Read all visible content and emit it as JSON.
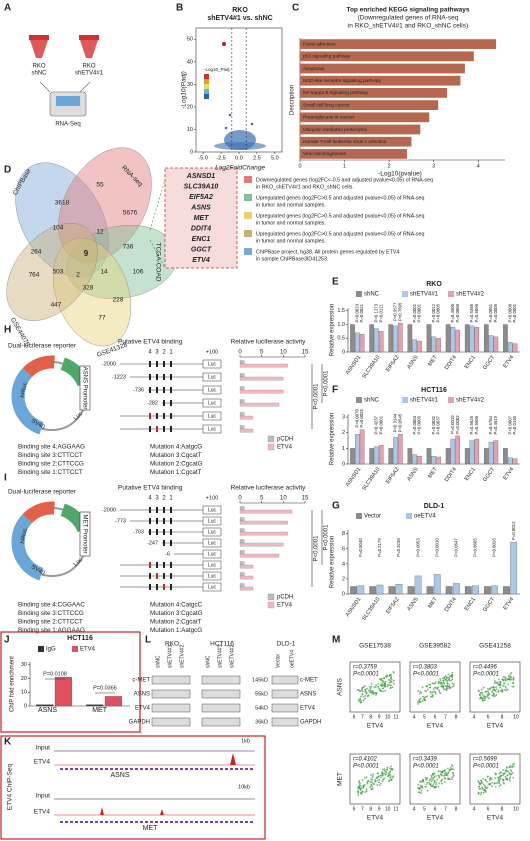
{
  "panel_labels": [
    "A",
    "B",
    "C",
    "D",
    "E",
    "F",
    "G",
    "H",
    "I",
    "J",
    "K",
    "L",
    "M"
  ],
  "a": {
    "tube1": [
      "RKO",
      "shNC"
    ],
    "tube2": [
      "RKO",
      "shETV4#1"
    ],
    "method": "RNA-Seq"
  },
  "b": {
    "title": [
      "RKO",
      "shETV4#1 vs. shNC"
    ],
    "ylabel": "-Log10(Padj)",
    "xlabel": "Log2FoldChange",
    "legend_title": "-Log10_Padj",
    "ylim": [
      0,
      55
    ],
    "yticks": [
      0,
      10,
      20,
      30,
      40,
      50
    ],
    "xlim": [
      -6,
      6
    ],
    "xticks": [
      {
        "value": -5,
        "label": "-5.0"
      },
      {
        "value": -2.5,
        "label": "-2.5"
      },
      {
        "value": 0,
        "label": "0.0"
      },
      {
        "value": 2.5,
        "label": "2.5"
      },
      {
        "value": 5,
        "label": "5.0"
      }
    ]
  },
  "c": {
    "type": "bar",
    "title": [
      "Top enriched KEGG signaling pathways",
      "(Downregulated genes of RNA-seq",
      "in RKO_shETV4#1 and RKO_shNC cells)"
    ],
    "ylabel": "Description",
    "xlabel": "-Log10(pvalue)",
    "color": "#b5684f",
    "categories": [
      "Focal adhesion",
      "p53 signaling pathway",
      "Apoptosis",
      "NOD-like receptor signaling pathway",
      "NF-kappa B signaling pathway",
      "Small cell lung cancer",
      "Proteoglycans in cancer",
      "Ubiquitin mediated proteolysis",
      "Human T-cell leukemia virus 1 infection",
      "Viral carcinogenesis"
    ],
    "values": [
      4.4,
      3.9,
      3.7,
      3.6,
      3.3,
      3.1,
      2.9,
      2.7,
      2.5,
      2.4
    ],
    "xlim": [
      0,
      4.6
    ],
    "xticks": [
      0,
      1,
      2,
      3,
      4
    ]
  },
  "d": {
    "sets": [
      "ChIPBase",
      "RNA-seq",
      "TCGA-COAD",
      "GSE41328",
      "GSE44076"
    ],
    "counts": [
      55,
      3618,
      5676,
      104,
      9,
      736,
      12,
      264,
      503,
      14,
      2,
      106,
      764,
      328,
      447,
      77,
      228
    ],
    "genes": [
      "ASNSD1",
      "SLC39A10",
      "EIF5A2",
      "ASNS",
      "MET",
      "DDIT4",
      "ENC1",
      "GGCT",
      "ETV4"
    ],
    "legend": [
      {
        "text": [
          "Downregulated genes (log2FC<-0.5 and adjusted pvalue<0.05) of RNA-seq",
          "in RKO_shETV4#1 and RKO_shNC cells."
        ],
        "color": "#e07a7a"
      },
      {
        "text": [
          "Upregulated genes (log2FC>0.5 and adjusted pvalue<0.05) of RNA-seq",
          "in tumor and normal samples."
        ],
        "color": "#7fbf9a"
      },
      {
        "text": [
          "Upregulated genes (log2FC>0.5 and adjusted pvalue<0.05) of RNA-seq",
          "in tumor and normal samples."
        ],
        "color": "#e6d27a"
      },
      {
        "text": [
          "Upregulated genes (log2FC>0.5 and adjusted pvalue<0.05) of RNA-seq",
          "in tumor and normal samples."
        ],
        "color": "#c9b07a"
      },
      {
        "text": [
          "ChIPBase project, hg38, All protein genes regulated by ETV4",
          "in sample ChIPBase3ID41253."
        ],
        "color": "#7aa7d6"
      }
    ]
  },
  "e": {
    "type": "bar",
    "title": "RKO",
    "ylabel": "Relative expression",
    "categories": [
      "ASNSD1",
      "SLC39A10",
      "EIF5A2",
      "ASNS",
      "MET",
      "DDIT4",
      "ENC1",
      "GGCT",
      "ETV4"
    ],
    "series": [
      {
        "name": "shNC",
        "color": "#8c8c8c",
        "values": [
          1,
          1,
          1,
          1,
          1,
          1,
          1,
          1,
          1
        ]
      },
      {
        "name": "shETV4#1",
        "color": "#a9c8e8",
        "values": [
          0.7,
          0.85,
          0.95,
          0.45,
          0.55,
          0.9,
          0.95,
          0.6,
          0.35
        ]
      },
      {
        "name": "shETV4#2",
        "color": "#e8a0b0",
        "values": [
          0.65,
          0.75,
          1.05,
          0.4,
          0.5,
          0.8,
          0.9,
          0.55,
          0.3
        ]
      }
    ],
    "ylim": [
      0,
      1.6
    ],
    "yticks": [
      0,
      0.5,
      {
        "value": 1,
        "label": "1.0"
      },
      1.5
    ],
    "p_values": [
      [
        "P=0.0023",
        "P=0.0021"
      ],
      [
        "P=0.1273",
        "P=0.0121"
      ],
      [
        "P=0.3577",
        "P=0.7895"
      ],
      [
        "P=0.0001",
        "P<0.0001"
      ],
      [
        "P=0.0012",
        "P=0.0005"
      ],
      [
        "P=0.4505",
        "P=0.0868"
      ],
      [
        "P=0.5385",
        "P=0.6096"
      ],
      [
        "P=0.0051",
        "P=0.0009"
      ],
      [
        "P=0.0008",
        "P=0.0001"
      ]
    ]
  },
  "f": {
    "type": "bar",
    "title": "HCT116",
    "ylabel": "Relative expression",
    "categories": [
      "ASNSD1",
      "SLC39A10",
      "EIF5A2",
      "ASNS",
      "MET",
      "DDIT4",
      "ENC1",
      "GGCT",
      "ETV4"
    ],
    "series": [
      {
        "name": "shNC",
        "color": "#8c8c8c",
        "values": [
          1,
          1,
          1,
          1,
          1,
          1,
          1,
          1,
          1
        ]
      },
      {
        "name": "shETV4#1",
        "color": "#a9c8e8",
        "values": [
          1.9,
          1.1,
          1.7,
          0.6,
          0.5,
          1.6,
          1.5,
          1.4,
          0.4
        ]
      },
      {
        "name": "shETV4#2",
        "color": "#e8a0b0",
        "values": [
          2.2,
          1.2,
          1.9,
          0.5,
          0.45,
          1.8,
          1.6,
          1.5,
          0.35
        ]
      }
    ],
    "ylim": [
      0,
      3.2
    ],
    "yticks": [
      0,
      1,
      2,
      3
    ],
    "p_values": [
      [
        "P=0.0070",
        "P=0.0025"
      ],
      [
        "P=0.4237",
        "P=0.0001"
      ],
      [
        "P=0.3144",
        "P=0.0545"
      ],
      [
        "P=0.0004",
        "P=0.0005"
      ],
      [
        "P=0.0032",
        "P=0.0037"
      ],
      [
        "P=0.0019",
        "P=0.0002"
      ],
      [
        "P=0.5625",
        "P=0.5506"
      ],
      [
        "P=0.5784",
        "P=0.4619"
      ],
      [
        "P=0.0007",
        "P=0.0140"
      ]
    ]
  },
  "g": {
    "type": "bar",
    "title": "DLD-1",
    "ylabel": "Relative expression",
    "categories": [
      "ASNSD1",
      "SLC39A10",
      "EIF5A2",
      "ASNS",
      "MET",
      "DDIT4",
      "ENC1",
      "GGCT",
      "ETV4"
    ],
    "series": [
      {
        "name": "Vector",
        "color": "#8c8c8c",
        "values": [
          1,
          1,
          1,
          1,
          1,
          1,
          1,
          1,
          1
        ]
      },
      {
        "name": "oeETV4",
        "color": "#a9c8e8",
        "values": [
          1.1,
          1.2,
          1.3,
          2.4,
          2.6,
          1.4,
          1.1,
          1.1,
          6.9
        ]
      }
    ],
    "ylim": [
      0,
      8.5
    ],
    "yticks": [
      0,
      2,
      4,
      6,
      8
    ],
    "p_values": [
      [
        "P=0.9040"
      ],
      [
        "P=0.2179"
      ],
      [
        "P=0.3236"
      ],
      [
        "P=0.0053"
      ],
      [
        "P=0.0010"
      ],
      [
        "P=0.0647"
      ],
      [
        "P=0.8665"
      ],
      [
        "P=0.8026"
      ],
      [
        "P=0.0012"
      ]
    ]
  },
  "h": {
    "reporter": "Dual-luciferase reporter",
    "elements": [
      "hRluc",
      "SV40",
      "Luc"
    ],
    "promoter": "ASNS Promoter",
    "binding_title": "Putative ETV4 binding",
    "axis_title": "Relative luciferase activity",
    "site_numbers": [
      "4",
      "3",
      "2",
      "1"
    ],
    "positions": [
      "-2000",
      "-1223",
      "-736",
      "-282"
    ],
    "end_label": "+100",
    "luc": "Luc",
    "xlim": [
      0,
      15
    ],
    "xticks": [
      0,
      5,
      10,
      15
    ],
    "p_labels": [
      "P<0.0001",
      "P<0.0001"
    ],
    "series": [
      {
        "name": "pCDH",
        "color": "#bdbdbd",
        "values": [
          1,
          1,
          1,
          1,
          1,
          1
        ]
      },
      {
        "name": "ETV4",
        "color": "#f2b8c0",
        "values": [
          11,
          10,
          10,
          9,
          3,
          3
        ]
      }
    ],
    "binding_sites": [
      "Binding site 4:AGGAAG",
      "Binding site 3:CTTCCT",
      "Binding site 2:CTTCCG",
      "Binding site 1:CTTCCT"
    ],
    "mutations": [
      "Mutation 4:AatgcG",
      "Mutation 3:CgcatT",
      "Mutation 2:CgcatG",
      "Mutation 1:CgcatT"
    ]
  },
  "i": {
    "reporter": "Dual-luciferase reporter",
    "elements": [
      "hRluc",
      "SV40",
      "Luc"
    ],
    "promoter": "MET Promoter",
    "binding_title": "Putative ETV4 binding",
    "axis_title": "Relative luciferase activity",
    "site_numbers": [
      "4",
      "3",
      "2",
      "1"
    ],
    "positions": [
      "-2000",
      "-773",
      "-703",
      "-247",
      "-6"
    ],
    "end_label": "+100",
    "luc": "Luc",
    "xlim": [
      0,
      15
    ],
    "xticks": [
      0,
      5,
      10,
      15
    ],
    "p_labels": [
      "P<0.0001",
      "P<0.0001"
    ],
    "series": [
      {
        "name": "pCDH",
        "color": "#bdbdbd",
        "values": [
          1,
          1,
          1,
          1,
          1,
          1,
          1,
          1
        ]
      },
      {
        "name": "ETV4",
        "color": "#f2b8c0",
        "values": [
          12,
          11,
          11,
          10,
          9,
          3,
          3,
          3
        ]
      }
    ],
    "binding_sites": [
      "Binding site 4:CGGAAC",
      "Binding site 3:CTTCCG",
      "Binding site 2:CTTCCT",
      "Binding site 1:AGGAAG"
    ],
    "mutations": [
      "Mutation 4:CatgcC",
      "Mutation 3:CgcatG",
      "Mutation 2:CgcatT",
      "Mutation 1:AatgcG"
    ]
  },
  "j": {
    "type": "bar",
    "title": "HCT116",
    "ylabel": "ChIP fold enrichment",
    "categories": [
      "ASNS",
      "MET"
    ],
    "series": [
      {
        "name": "IgG",
        "color": "#333333",
        "values": [
          1,
          1
        ]
      },
      {
        "name": "ETV4",
        "color": "#e05060",
        "values": [
          21,
          7
        ]
      }
    ],
    "ylim": [
      0,
      32
    ],
    "yticks": [
      0,
      10,
      20,
      30
    ],
    "p_values": [
      "P=0.0108",
      "P=0.0366"
    ]
  },
  "k": {
    "title": "ETV4 ChIP-Seq",
    "tracks": [
      "Input",
      "ETV4",
      "Input",
      "ETV4"
    ],
    "genes": [
      "ASNS",
      "MET"
    ],
    "scales": [
      "1kb",
      "10kb"
    ]
  },
  "l": {
    "groups": [
      "RKO",
      "HCT116",
      "DLD-1"
    ],
    "lanes": [
      "shNC",
      "shETV4#1",
      "shETV4#2",
      "shNC",
      "shETV4#1",
      "shETV4#2",
      "Vector",
      "oeETV4"
    ],
    "proteins": [
      "c-MET",
      "ASNS",
      "ETV4",
      "GAPDH"
    ],
    "sizes": [
      "145kD",
      "55kD",
      "54kD",
      "36kD"
    ],
    "right_proteins": [
      "c-MET",
      "ASNS",
      "ETV4",
      "GAPDH"
    ]
  },
  "m": {
    "datasets": [
      "GSE17538",
      "GSE39582",
      "GSE41258"
    ],
    "r": [
      "r=0.3759",
      "r=0.3803",
      "r=0.4496",
      "r=0.4102",
      "r=0.3439",
      "r=0.5699"
    ],
    "p": "P<0.0001",
    "ylabels": [
      "ASNS",
      "MET"
    ],
    "xlabel": "ETV4",
    "xticks": [
      [
        6,
        7,
        8,
        9,
        10,
        11
      ],
      [
        4,
        5,
        6,
        7,
        8
      ],
      [
        4,
        6,
        8,
        10
      ]
    ]
  }
}
